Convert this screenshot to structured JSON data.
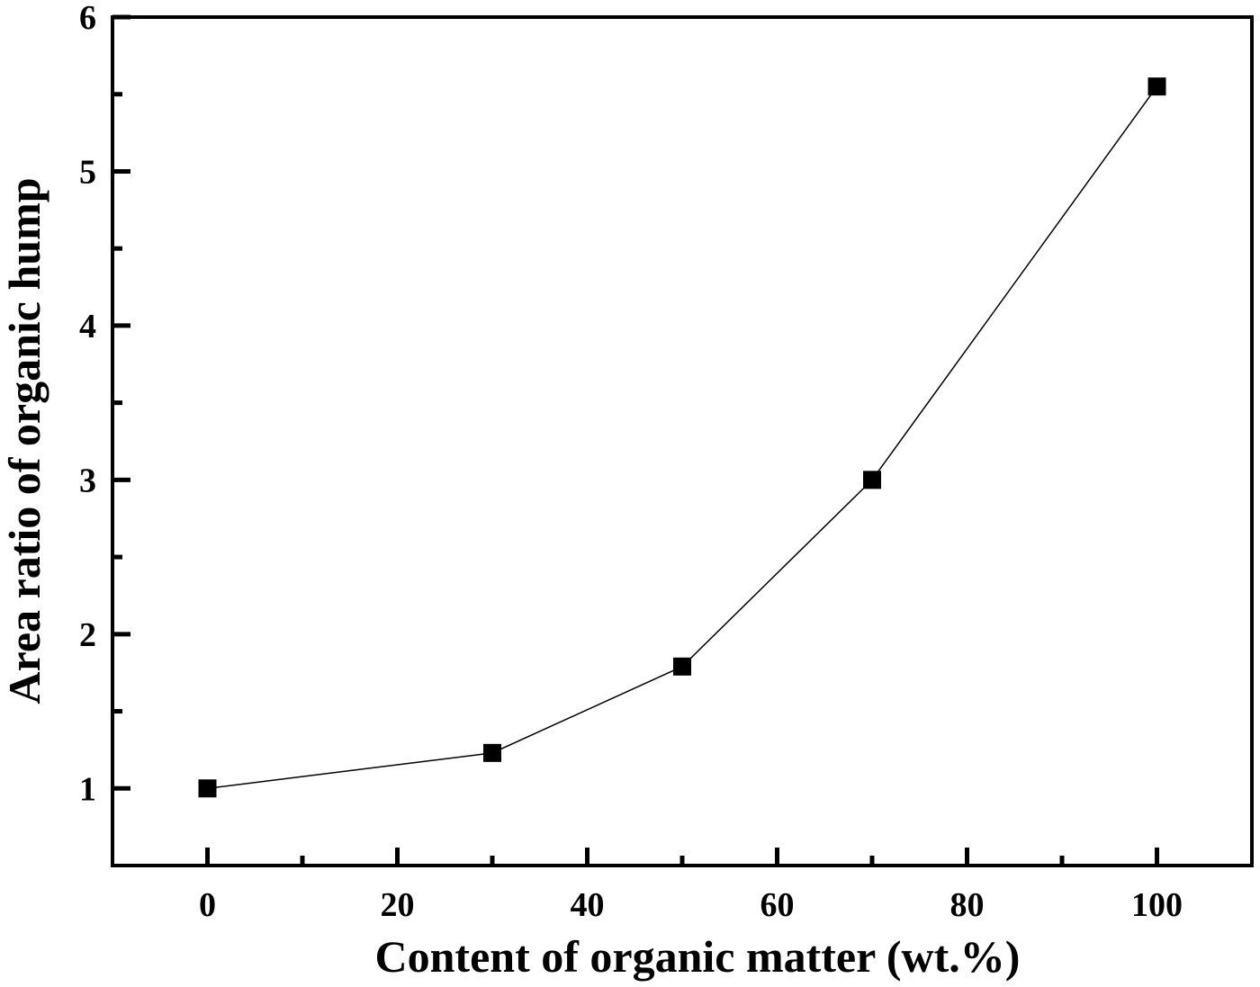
{
  "chart_data": {
    "type": "line",
    "title": "",
    "xlabel": "Content of organic matter (wt.%)",
    "ylabel": "Area ratio of organic hump",
    "xlim": [
      -10,
      110
    ],
    "ylim": [
      0.5,
      6
    ],
    "x_ticks": [
      0,
      20,
      40,
      60,
      80,
      100
    ],
    "x_tick_labels": [
      "0",
      "20",
      "40",
      "60",
      "80",
      "100"
    ],
    "x_minor_ticks": [
      10,
      30,
      50,
      70,
      90
    ],
    "y_ticks": [
      1,
      2,
      3,
      4,
      5,
      6
    ],
    "y_tick_labels": [
      "1",
      "2",
      "3",
      "4",
      "5",
      "6"
    ],
    "y_minor_ticks": [
      1.5,
      2.5,
      3.5,
      4.5,
      5.5
    ],
    "grid": false,
    "series": [
      {
        "marker": "square",
        "color": "#000000",
        "x": [
          0,
          30,
          50,
          70,
          100
        ],
        "y": [
          1.0,
          1.23,
          1.79,
          3.0,
          5.55
        ]
      }
    ]
  }
}
